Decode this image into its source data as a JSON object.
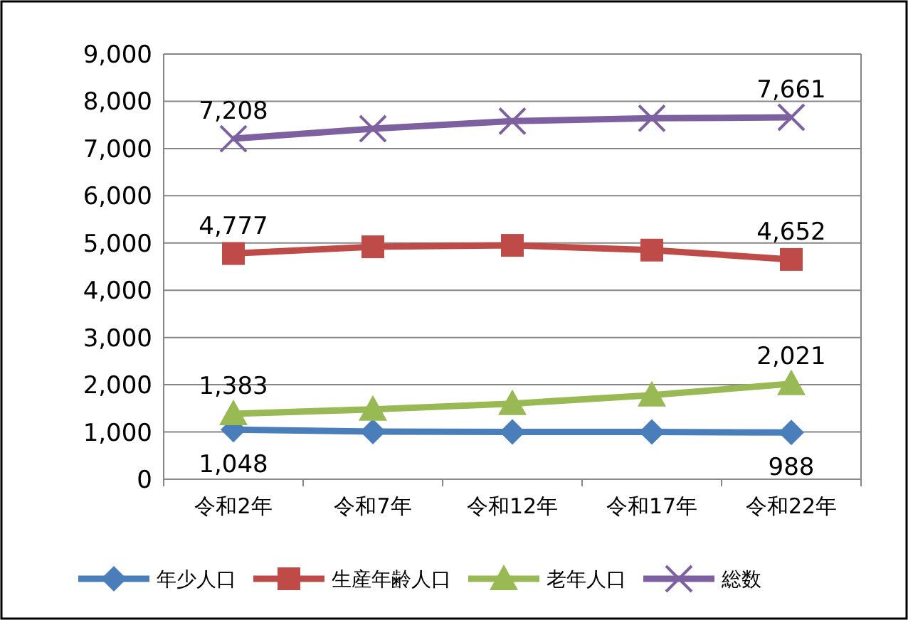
{
  "chart_data": {
    "type": "line",
    "categories": [
      "令和2年",
      "令和7年",
      "令和12年",
      "令和17年",
      "令和22年"
    ],
    "series": [
      {
        "name": "年少人口",
        "color": "#4a7ebb",
        "marker": "diamond",
        "values": [
          1048,
          1010,
          1000,
          1000,
          988
        ],
        "value_labels": [
          "1,048",
          null,
          null,
          null,
          "988"
        ]
      },
      {
        "name": "生産年齢人口",
        "color": "#be4b48",
        "marker": "square",
        "values": [
          4777,
          4920,
          4950,
          4850,
          4652
        ],
        "value_labels": [
          "4,777",
          null,
          null,
          null,
          "4,652"
        ]
      },
      {
        "name": "老年人口",
        "color": "#98b954",
        "marker": "triangle",
        "values": [
          1383,
          1480,
          1600,
          1780,
          2021
        ],
        "value_labels": [
          "1,383",
          null,
          null,
          null,
          "2,021"
        ]
      },
      {
        "name": "総数",
        "color": "#7d60a0",
        "marker": "cross",
        "values": [
          7208,
          7420,
          7580,
          7640,
          7661
        ],
        "value_labels": [
          "7,208",
          null,
          null,
          null,
          "7,661"
        ]
      }
    ],
    "ylim": [
      0,
      9000
    ],
    "yticks": [
      {
        "value": 0,
        "label": "0"
      },
      {
        "value": 1000,
        "label": "1,000"
      },
      {
        "value": 2000,
        "label": "2,000"
      },
      {
        "value": 3000,
        "label": "3,000"
      },
      {
        "value": 4000,
        "label": "4,000"
      },
      {
        "value": 5000,
        "label": "5,000"
      },
      {
        "value": 6000,
        "label": "6,000"
      },
      {
        "value": 7000,
        "label": "7,000"
      },
      {
        "value": 8000,
        "label": "8,000"
      },
      {
        "value": 9000,
        "label": "9,000"
      }
    ],
    "grid": "y",
    "legend": "bottom",
    "line_style": "solid"
  }
}
